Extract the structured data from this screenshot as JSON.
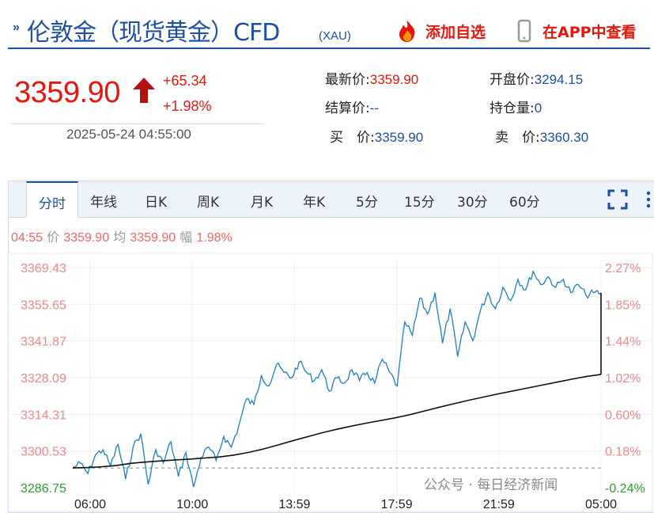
{
  "header": {
    "title": "伦敦金（现货黄金）CFD",
    "symbol": "(XAU)",
    "add_watch": "添加自选",
    "view_app": "在APP中查看"
  },
  "quote": {
    "price": "3359.90",
    "change": "+65.34",
    "change_pct": "+1.98%",
    "timestamp": "2025-05-24 04:55:00",
    "latest_label": "最新价:",
    "latest_value": "3359.90",
    "open_label": "开盘价:",
    "open_value": "3294.15",
    "settle_label": "结算价:",
    "settle_value": "--",
    "oi_label": "持仓量:",
    "oi_value": "0",
    "bid_label": "买　价:",
    "bid_value": "3359.90",
    "ask_label": "卖　价:",
    "ask_value": "3360.30"
  },
  "tabs": [
    "分时",
    "年线",
    "日K",
    "周K",
    "月K",
    "年K",
    "5分",
    "15分",
    "30分",
    "60分"
  ],
  "info_bar": {
    "time": "04:55",
    "price_label": "价",
    "price": "3359.90",
    "avg_label": "均",
    "avg": "3359.90",
    "amp_label": "幅",
    "amp": "1.98%"
  },
  "watermark": "公众号 · 每日经济新闻",
  "colors": {
    "accent": "#1e50a2",
    "up": "#e3170d",
    "line": "#1a7fc7",
    "avg": "#111111",
    "down": "#2e9b2e"
  },
  "chart_data": {
    "type": "line",
    "y_left_ticks": [
      "3369.43",
      "3355.65",
      "3341.87",
      "3328.09",
      "3314.31",
      "3300.53",
      "3286.75"
    ],
    "y_right_ticks": [
      "2.27%",
      "1.85%",
      "1.44%",
      "1.02%",
      "0.60%",
      "0.18%",
      "-0.24%"
    ],
    "x_ticks": [
      "06:00",
      "10:00",
      "13:59",
      "17:59",
      "21:59",
      "05:00"
    ],
    "ylim": [
      3286.75,
      3369.43
    ],
    "reference_price": 3294.15,
    "series": [
      {
        "values": [
          3294.15,
          3296,
          3292,
          3299,
          3301,
          3295,
          3303,
          3290,
          3302,
          3307,
          3288,
          3301,
          3296,
          3304,
          3291,
          3300,
          3287,
          3298,
          3302,
          3297,
          3306,
          3302,
          3310,
          3320,
          3318,
          3329,
          3325,
          3333,
          3330,
          3328,
          3334,
          3330,
          3327,
          3331,
          3323,
          3328,
          3326,
          3331,
          3327,
          3330,
          3326,
          3335,
          3330,
          3325,
          3349,
          3344,
          3358,
          3352,
          3360,
          3341,
          3354,
          3336,
          3349,
          3342,
          3353,
          3360,
          3354,
          3362,
          3357,
          3365,
          3361,
          3368,
          3363,
          3366,
          3362,
          3365,
          3360,
          3363,
          3359,
          3360,
          3359.9
        ]
      },
      {
        "values": [
          3294.15,
          3294.3,
          3294.6,
          3295.1,
          3295.9,
          3296.4,
          3296.8,
          3297.2,
          3297.5,
          3297.9,
          3298.3,
          3299.0,
          3300.0,
          3301.3,
          3302.8,
          3304.4,
          3305.9,
          3307.4,
          3308.7,
          3309.9,
          3311.0,
          3312.0,
          3313.0,
          3314.2,
          3315.6,
          3317.0,
          3318.3,
          3319.6,
          3320.8,
          3322.0,
          3323.1,
          3324.2,
          3325.3,
          3326.4,
          3327.5,
          3328.5,
          3329.3
        ]
      }
    ]
  }
}
